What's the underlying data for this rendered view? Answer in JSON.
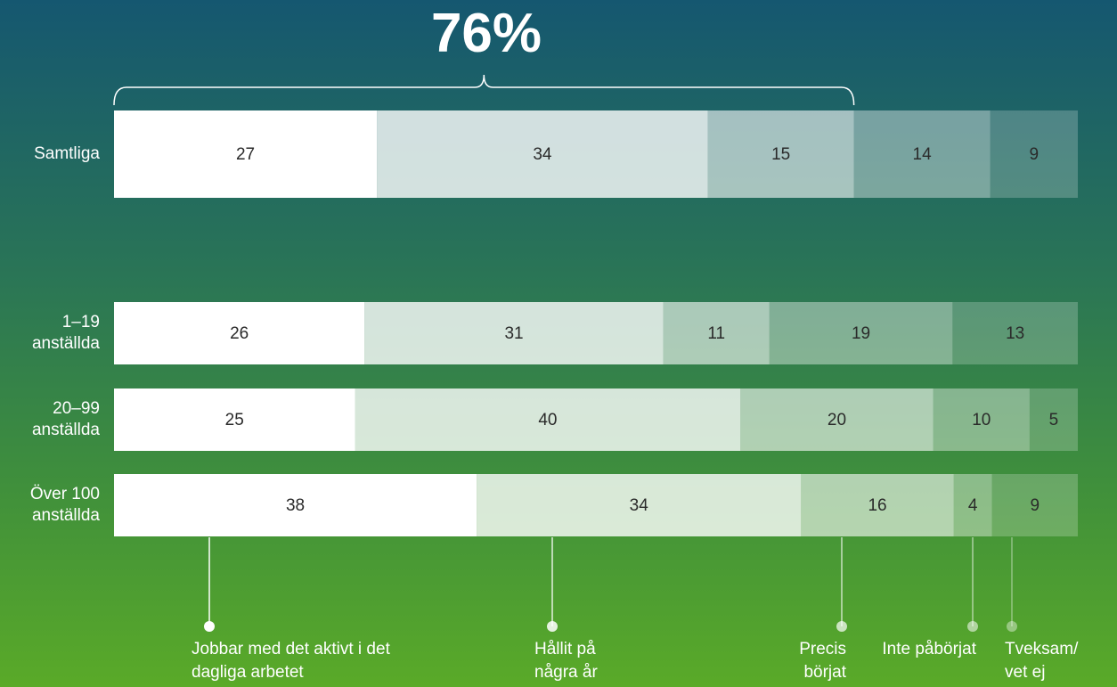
{
  "chart_data": {
    "type": "stacked-bar-horizontal",
    "annotation": "76%",
    "categories": [
      "Samtliga",
      "1–19 anställda",
      "20–99 anställda",
      "Över 100 anställda"
    ],
    "series": [
      {
        "name": "Jobbar med det aktivt i det dagliga arbetet",
        "color": "#ffffff",
        "values": [
          27,
          26,
          25,
          38
        ]
      },
      {
        "name": "Hållit på några år",
        "color": "rgba(255,255,255,0.8)",
        "values": [
          34,
          31,
          40,
          34
        ]
      },
      {
        "name": "Precis börjat",
        "color": "rgba(255,255,255,0.6)",
        "values": [
          15,
          11,
          20,
          16
        ]
      },
      {
        "name": "Inte påbörjat",
        "color": "rgba(255,255,255,0.4)",
        "values": [
          14,
          19,
          10,
          4
        ]
      },
      {
        "name": "Tveksam/ vet ej",
        "color": "rgba(255,255,255,0.22)",
        "values": [
          9,
          13,
          5,
          9
        ]
      }
    ]
  }
}
